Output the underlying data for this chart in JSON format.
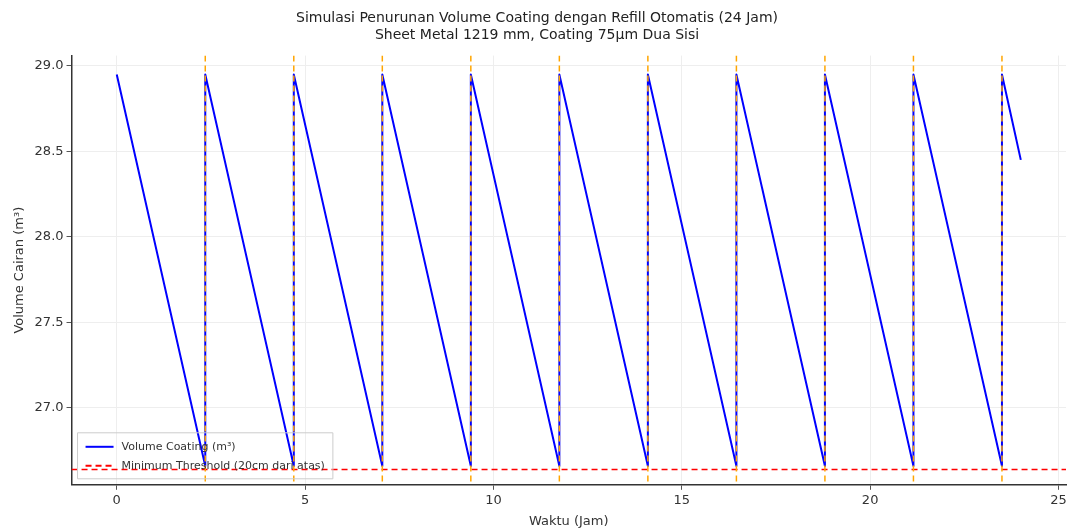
{
  "chart_data": {
    "type": "line",
    "title": "Simulasi Penurunan Volume Coating dengan Refill Otomatis (24 Jam)",
    "subtitle": "Sheet Metal 1219 mm, Coating 75µm Dua Sisi",
    "xlabel": "Waktu (Jam)",
    "ylabel": "Volume Cairan (m³)",
    "x": [
      0,
      2.35,
      2.35,
      4.7,
      4.7,
      7.05,
      7.05,
      9.4,
      9.4,
      11.75,
      11.75,
      14.1,
      14.1,
      16.45,
      16.45,
      18.8,
      18.8,
      21.15,
      21.15,
      23.5,
      23.5,
      24
    ],
    "series": [
      {
        "name": "Volume Coating (m³)",
        "color": "#0000ff",
        "values": [
          28.95,
          26.66,
          28.95,
          26.66,
          28.95,
          26.66,
          28.95,
          26.66,
          28.95,
          26.66,
          28.95,
          26.66,
          28.95,
          26.66,
          28.95,
          26.66,
          28.95,
          26.66,
          28.95,
          26.66,
          28.95,
          28.45
        ]
      }
    ],
    "xlim": [
      -1.2,
      25.2
    ],
    "xticks": [
      0,
      5,
      10,
      15,
      20,
      25
    ],
    "ylim": [
      26.55,
      29.06
    ],
    "yticks": [
      {
        "value": 27,
        "label": "27.0"
      },
      {
        "value": 27.5,
        "label": "27.5"
      },
      {
        "value": 28,
        "label": "28.0"
      },
      {
        "value": 28.5,
        "label": "28.5"
      },
      {
        "value": 29,
        "label": "29.0"
      }
    ],
    "ref_lines": [
      {
        "axis": "y",
        "value": 26.64,
        "label": "Minimum Threshold (20cm dari atas)",
        "color": "#ff0000",
        "line_style": "dashed"
      },
      {
        "axis": "x",
        "value": 2.35,
        "color": "#ffa500",
        "line_style": "dashed"
      },
      {
        "axis": "x",
        "value": 4.7,
        "color": "#ffa500",
        "line_style": "dashed"
      },
      {
        "axis": "x",
        "value": 7.05,
        "color": "#ffa500",
        "line_style": "dashed"
      },
      {
        "axis": "x",
        "value": 9.4,
        "color": "#ffa500",
        "line_style": "dashed"
      },
      {
        "axis": "x",
        "value": 11.75,
        "color": "#ffa500",
        "line_style": "dashed"
      },
      {
        "axis": "x",
        "value": 14.1,
        "color": "#ffa500",
        "line_style": "dashed"
      },
      {
        "axis": "x",
        "value": 16.45,
        "color": "#ffa500",
        "line_style": "dashed"
      },
      {
        "axis": "x",
        "value": 18.8,
        "color": "#ffa500",
        "line_style": "dashed"
      },
      {
        "axis": "x",
        "value": 21.15,
        "color": "#ffa500",
        "line_style": "dashed"
      },
      {
        "axis": "x",
        "value": 23.5,
        "color": "#ffa500",
        "line_style": "dashed"
      }
    ],
    "grid": true,
    "legend": "bottom left",
    "marker": "none",
    "line_style": "solid"
  }
}
